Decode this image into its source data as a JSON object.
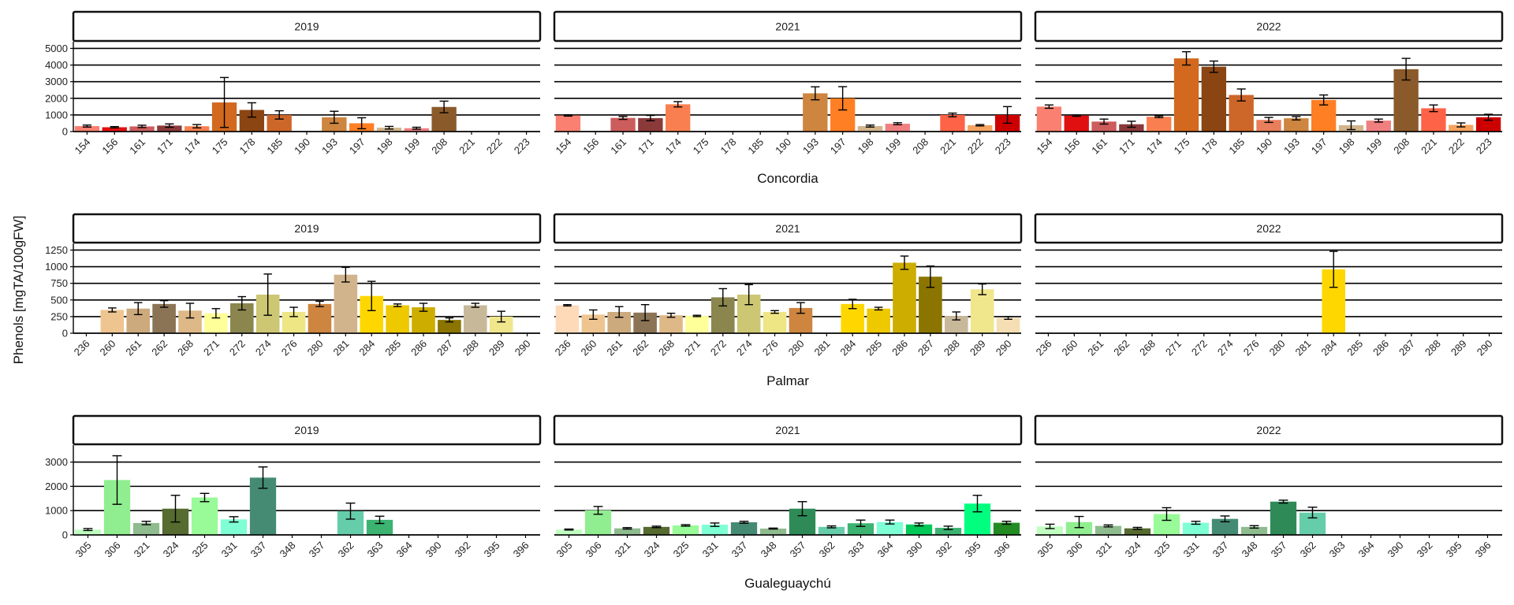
{
  "chart_data": {
    "type": "bar",
    "ylabel": "Phenols [mgTA/100gFW]",
    "facet_cols": [
      "2019",
      "2021",
      "2022"
    ],
    "panels": [
      {
        "id": "concordia",
        "xlabel": "Concordia",
        "ymax": 5400,
        "yticks": [
          0,
          1000,
          2000,
          3000,
          4000,
          5000
        ],
        "ytick_labels": [
          "0",
          "1000",
          "2000",
          "3000",
          "4000",
          "5000"
        ],
        "categories": [
          "154",
          "156",
          "161",
          "171",
          "174",
          "175",
          "178",
          "185",
          "190",
          "193",
          "197",
          "198",
          "199",
          "208",
          "221",
          "222",
          "223"
        ],
        "colors": [
          "#FA8072",
          "#E01010",
          "#CD5C5C",
          "#8B3A3A",
          "#FA7F50",
          "#D2691E",
          "#8B4513",
          "#CD6629",
          "#E87E5B",
          "#CD853F",
          "#FF7F24",
          "#D2B48C",
          "#F08080",
          "#8B5A2B",
          "#FF6347",
          "#F4A460",
          "#CD0000"
        ],
        "years": [
          {
            "values": [
              330,
              260,
              310,
              360,
              320,
              1750,
              1300,
              1000,
              null,
              860,
              500,
              230,
              200,
              1480,
              null,
              null,
              null
            ],
            "errors": [
              60,
              40,
              70,
              100,
              100,
              1500,
              430,
              250,
              null,
              360,
              330,
              80,
              60,
              350,
              null,
              null,
              null
            ]
          },
          {
            "values": [
              970,
              null,
              820,
              810,
              1640,
              null,
              null,
              null,
              null,
              2300,
              2000,
              330,
              470,
              null,
              1000,
              380,
              1000
            ],
            "errors": [
              40,
              null,
              90,
              160,
              160,
              null,
              null,
              null,
              null,
              390,
              700,
              60,
              60,
              null,
              110,
              40,
              500
            ]
          },
          {
            "values": [
              1500,
              960,
              600,
              440,
              890,
              4400,
              3900,
              2200,
              700,
              800,
              1900,
              380,
              660,
              3750,
              1400,
              400,
              860
            ],
            "errors": [
              100,
              40,
              150,
              180,
              50,
              400,
              340,
              360,
              150,
              100,
              300,
              260,
              90,
              650,
              200,
              120,
              180
            ]
          }
        ]
      },
      {
        "id": "palmar",
        "xlabel": "Palmar",
        "ymax": 1350,
        "yticks": [
          0,
          250,
          500,
          750,
          1000,
          1250
        ],
        "ytick_labels": [
          "0",
          "250",
          "500",
          "750",
          "1000",
          "1250"
        ],
        "categories": [
          "236",
          "260",
          "261",
          "262",
          "268",
          "271",
          "272",
          "274",
          "276",
          "280",
          "281",
          "284",
          "285",
          "286",
          "287",
          "288",
          "289",
          "290"
        ],
        "colors": [
          "#FFDAB9",
          "#EEC591",
          "#CDAA7D",
          "#8B7355",
          "#DEB887",
          "#FFFF99",
          "#8B864E",
          "#CDC673",
          "#EEE685",
          "#CD853F",
          "#D2B48C",
          "#FFD700",
          "#EEC900",
          "#CDAD00",
          "#8B7500",
          "#C8B89A",
          "#F0E68C",
          "#F5DEB3"
        ],
        "years": [
          {
            "values": [
              null,
              350,
              370,
              440,
              340,
              300,
              450,
              580,
              320,
              440,
              880,
              560,
              420,
              390,
              200,
              420,
              250,
              null
            ],
            "errors": [
              null,
              30,
              90,
              50,
              110,
              70,
              100,
              310,
              70,
              40,
              110,
              220,
              20,
              60,
              30,
              30,
              80,
              null
            ]
          },
          {
            "values": [
              420,
              280,
              320,
              310,
              270,
              260,
              540,
              580,
              320,
              380,
              null,
              440,
              370,
              1060,
              850,
              260,
              660,
              230
            ],
            "errors": [
              10,
              70,
              80,
              120,
              30,
              10,
              130,
              150,
              20,
              80,
              null,
              70,
              20,
              100,
              160,
              60,
              80,
              20
            ]
          },
          {
            "values": [
              null,
              null,
              null,
              null,
              null,
              null,
              null,
              null,
              null,
              null,
              null,
              960,
              null,
              null,
              null,
              null,
              null,
              null
            ],
            "errors": [
              null,
              null,
              null,
              null,
              null,
              null,
              null,
              null,
              null,
              null,
              null,
              270,
              null,
              null,
              null,
              null,
              null,
              null
            ]
          }
        ]
      },
      {
        "id": "gualeguaychu",
        "xlabel": "Gualeguaychú",
        "ymax": 3700,
        "yticks": [
          0,
          1000,
          2000,
          3000
        ],
        "ytick_labels": [
          "0",
          "1000",
          "2000",
          "3000"
        ],
        "categories": [
          "305",
          "306",
          "321",
          "324",
          "325",
          "331",
          "337",
          "348",
          "357",
          "362",
          "363",
          "364",
          "390",
          "392",
          "395",
          "396"
        ],
        "colors": [
          "#C1FFC1",
          "#90EE90",
          "#8FBC8F",
          "#556B2F",
          "#98FB98",
          "#7FFFD4",
          "#458B74",
          "#8FBC8F",
          "#2E8B57",
          "#66CDAA",
          "#3CB371",
          "#7FFFD4",
          "#00C957",
          "#3CB371",
          "#00FF7F",
          "#228B22"
        ],
        "years": [
          {
            "values": [
              220,
              2260,
              490,
              1080,
              1540,
              640,
              2360,
              null,
              null,
              980,
              620,
              null,
              null,
              null,
              null,
              null
            ],
            "errors": [
              40,
              1000,
              70,
              550,
              170,
              110,
              440,
              null,
              null,
              330,
              150,
              null,
              null,
              null,
              null,
              null
            ]
          },
          {
            "values": [
              220,
              1010,
              270,
              330,
              390,
              420,
              520,
              260,
              1080,
              330,
              480,
              530,
              430,
              290,
              1290,
              500
            ],
            "errors": [
              20,
              160,
              30,
              30,
              30,
              70,
              40,
              20,
              290,
              40,
              130,
              80,
              60,
              70,
              340,
              60
            ]
          },
          {
            "values": [
              350,
              530,
              370,
              270,
              860,
              500,
              660,
              330,
              1370,
              920,
              null,
              null,
              null,
              null,
              null,
              null
            ],
            "errors": [
              90,
              230,
              40,
              40,
              260,
              60,
              120,
              50,
              60,
              220,
              null,
              null,
              null,
              null,
              null,
              null
            ]
          }
        ]
      }
    ]
  }
}
